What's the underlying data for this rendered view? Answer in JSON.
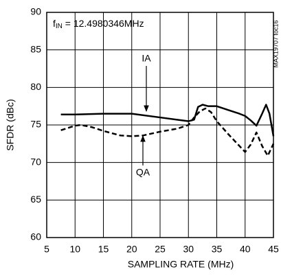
{
  "chart_data": {
    "type": "line",
    "xlabel": "SAMPLING RATE (MHz)",
    "ylabel": "SFDR (dBc)",
    "annotation": [
      "f",
      "IN",
      " = 12.4980346MHz"
    ],
    "figure_id": "MAX19707 toc16",
    "xlim": [
      5,
      45
    ],
    "xticks": [
      5,
      10,
      15,
      20,
      25,
      30,
      35,
      40,
      45
    ],
    "ylim": [
      60,
      90
    ],
    "yticks": [
      60,
      65,
      70,
      75,
      80,
      85,
      90
    ],
    "grid": true,
    "series": [
      {
        "name": "IA",
        "color": "#000000",
        "dash": false,
        "x": [
          7.5,
          10,
          15,
          20,
          25,
          28,
          30,
          31,
          31.7,
          32.5,
          33.5,
          35,
          37,
          39,
          40,
          41,
          42,
          43,
          43.7,
          44.3,
          45
        ],
        "values": [
          76.4,
          76.4,
          76.5,
          76.5,
          76.0,
          75.7,
          75.5,
          75.7,
          77.4,
          77.7,
          77.5,
          77.5,
          77.0,
          76.5,
          76.2,
          75.6,
          74.9,
          76.5,
          77.7,
          76.5,
          73.5
        ]
      },
      {
        "name": "QA",
        "color": "#000000",
        "dash": true,
        "x": [
          7.5,
          10,
          11,
          13,
          15,
          18,
          20,
          22,
          25,
          28,
          30,
          31,
          32,
          33,
          34,
          35,
          37,
          39,
          40,
          41,
          42,
          43,
          44,
          45
        ],
        "values": [
          74.3,
          74.9,
          75.0,
          74.7,
          74.2,
          73.6,
          73.5,
          73.6,
          74.1,
          74.5,
          75.0,
          76.0,
          76.8,
          77.2,
          76.7,
          75.5,
          73.8,
          72.2,
          71.4,
          72.4,
          74.0,
          72.2,
          70.9,
          72.5
        ]
      }
    ]
  }
}
